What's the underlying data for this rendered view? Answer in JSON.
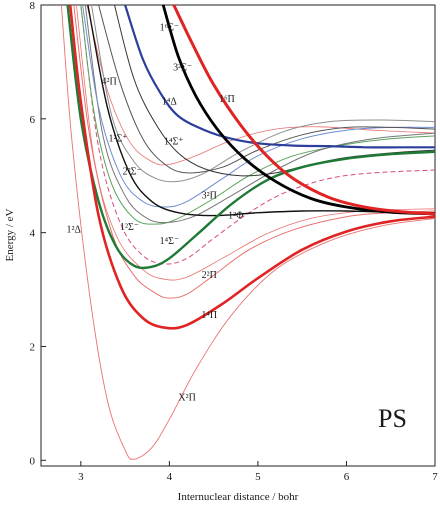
{
  "chart_data": {
    "type": "line",
    "title": "",
    "molecule_label": "PS",
    "xlabel": "Internuclear distance / bohr",
    "ylabel": "Energy / eV",
    "xlim": [
      2.55,
      7.0
    ],
    "ylim": [
      -0.1,
      8.0
    ],
    "xticks": [
      3,
      4,
      5,
      6,
      7
    ],
    "yticks": [
      0,
      2,
      4,
      6,
      8
    ],
    "grid": false,
    "series": [
      {
        "label": "X²Π",
        "color": "#e8726f",
        "width": 0.9,
        "label_at": [
          4.2,
          1.05
        ],
        "x": [
          2.78,
          2.9,
          3.1,
          3.3,
          3.5,
          3.6,
          3.8,
          4.0,
          4.3,
          4.7,
          5.2,
          5.8,
          6.4,
          7.0
        ],
        "y": [
          8.0,
          5.6,
          2.9,
          1.05,
          0.18,
          0.02,
          0.22,
          0.72,
          1.6,
          2.55,
          3.35,
          3.85,
          4.12,
          4.25
        ]
      },
      {
        "label": "1⁴Π",
        "color": "#e02424",
        "width": 2.6,
        "label_at": [
          4.45,
          2.5
        ],
        "x": [
          2.88,
          3.0,
          3.2,
          3.45,
          3.7,
          3.95,
          4.2,
          4.6,
          5.0,
          5.5,
          6.0,
          6.5,
          7.0
        ],
        "y": [
          8.0,
          6.3,
          4.3,
          3.05,
          2.5,
          2.33,
          2.38,
          2.75,
          3.2,
          3.7,
          4.02,
          4.2,
          4.28
        ]
      },
      {
        "label": "2²Π",
        "color": "#e8726f",
        "width": 1.0,
        "label_at": [
          4.45,
          3.2
        ],
        "x": [
          2.92,
          3.1,
          3.35,
          3.6,
          3.85,
          4.0,
          4.2,
          4.5,
          4.9,
          5.4,
          6.0,
          6.5,
          7.0
        ],
        "y": [
          8.0,
          5.7,
          4.0,
          3.25,
          2.93,
          2.85,
          2.92,
          3.25,
          3.7,
          4.05,
          4.28,
          4.35,
          4.38
        ]
      },
      {
        "label": "",
        "color": "#e8726f",
        "width": 0.8,
        "label_at": null,
        "x": [
          2.95,
          3.15,
          3.4,
          3.7,
          3.95,
          4.2,
          4.6,
          5.1,
          5.6,
          6.2,
          7.0
        ],
        "y": [
          8.0,
          5.3,
          3.95,
          3.35,
          3.18,
          3.22,
          3.55,
          3.98,
          4.25,
          4.38,
          4.42
        ]
      },
      {
        "label": "1⁴Σ⁻",
        "color": "#1e7a35",
        "width": 2.4,
        "label_at": [
          4.0,
          3.8
        ],
        "x": [
          2.85,
          3.0,
          3.2,
          3.4,
          3.6,
          3.8,
          4.0,
          4.3,
          4.7,
          5.1,
          5.5,
          6.0,
          6.5,
          7.0
        ],
        "y": [
          8.0,
          6.0,
          4.55,
          3.75,
          3.42,
          3.4,
          3.55,
          3.95,
          4.5,
          4.92,
          5.15,
          5.3,
          5.38,
          5.42
        ]
      },
      {
        "label": "1²Φ",
        "color": "#d94a7a",
        "width": 1.0,
        "dash": "5,3",
        "label_at": [
          4.75,
          4.25
        ],
        "x": [
          3.0,
          3.2,
          3.45,
          3.7,
          3.95,
          4.2,
          4.5,
          4.9,
          5.3,
          5.8,
          6.3,
          7.0
        ],
        "y": [
          8.0,
          5.5,
          4.15,
          3.6,
          3.45,
          3.55,
          3.9,
          4.35,
          4.7,
          4.95,
          5.05,
          5.1
        ]
      },
      {
        "label": "1²Δ",
        "color": "#5aa25a",
        "width": 1.0,
        "label_at": [
          2.92,
          4.0
        ],
        "x": [
          3.0,
          3.15,
          3.35,
          3.6,
          3.85,
          4.1,
          4.5,
          4.9,
          5.4,
          6.0,
          6.5,
          7.0
        ],
        "y": [
          8.0,
          6.1,
          4.85,
          4.25,
          4.15,
          4.25,
          4.6,
          5.0,
          5.35,
          5.55,
          5.65,
          5.7
        ]
      },
      {
        "label": "1²Σ⁻",
        "color": "#777777",
        "width": 1.0,
        "label_at": [
          3.55,
          4.05
        ],
        "x": [
          3.05,
          3.25,
          3.5,
          3.75,
          4.0,
          4.3,
          4.7,
          5.2,
          5.7,
          6.3,
          7.0
        ],
        "y": [
          8.0,
          5.7,
          4.65,
          4.25,
          4.18,
          4.3,
          4.65,
          5.1,
          5.45,
          5.65,
          5.75
        ]
      },
      {
        "label": "1²Σ⁺",
        "color": "#6f8ccf",
        "width": 1.0,
        "label_at": [
          3.42,
          5.6
        ],
        "x": [
          3.02,
          3.2,
          3.45,
          3.7,
          3.95,
          4.2,
          4.6,
          5.0,
          5.5,
          6.0,
          6.5,
          7.0
        ],
        "y": [
          8.0,
          6.2,
          5.0,
          4.55,
          4.45,
          4.55,
          4.95,
          5.35,
          5.65,
          5.8,
          5.85,
          5.85
        ]
      },
      {
        "label": "2²Σ⁻",
        "color": "#8f8f8f",
        "width": 1.0,
        "label_at": [
          3.58,
          5.02
        ],
        "x": [
          3.12,
          3.35,
          3.6,
          3.85,
          4.1,
          4.4,
          4.8,
          5.3,
          5.8,
          6.4,
          7.0
        ],
        "y": [
          8.0,
          6.05,
          5.25,
          4.95,
          4.9,
          5.05,
          5.42,
          5.78,
          5.95,
          5.98,
          5.95
        ]
      },
      {
        "label": "4²Π",
        "color": "#e8726f",
        "width": 0.8,
        "label_at": [
          3.32,
          6.6
        ],
        "x": [
          3.07,
          3.3,
          3.55,
          3.8,
          4.0,
          4.3,
          4.7,
          5.2,
          5.7,
          6.3,
          7.0
        ],
        "y": [
          8.0,
          6.5,
          5.6,
          5.25,
          5.2,
          5.35,
          5.62,
          5.82,
          5.86,
          5.8,
          5.75
        ]
      },
      {
        "label": "3²Σ⁻",
        "color": "#555555",
        "width": 1.0,
        "label_at": [
          4.15,
          6.85
        ],
        "x": [
          3.2,
          3.45,
          3.7,
          3.95,
          4.2,
          4.6,
          5.0,
          5.5,
          6.0,
          6.5,
          7.0
        ],
        "y": [
          8.0,
          6.6,
          5.65,
          5.2,
          5.05,
          5.15,
          5.45,
          5.72,
          5.85,
          5.85,
          5.82
        ]
      },
      {
        "label": "1⁴Δ",
        "color": "#2c3e9c",
        "width": 2.2,
        "label_at": [
          4.0,
          6.25
        ],
        "x": [
          3.5,
          3.7,
          3.9,
          4.1,
          4.4,
          4.7,
          5.0,
          5.4,
          5.8,
          6.2,
          6.6,
          7.0
        ],
        "y": [
          8.0,
          7.05,
          6.45,
          6.05,
          5.8,
          5.65,
          5.57,
          5.53,
          5.52,
          5.5,
          5.5,
          5.5
        ]
      },
      {
        "label": "1⁴Σ⁺",
        "color": "#333333",
        "width": 1.0,
        "label_at": [
          4.05,
          5.55
        ],
        "x": [
          3.38,
          3.6,
          3.85,
          4.1,
          4.4,
          4.8,
          5.2,
          5.6,
          6.0,
          6.5,
          7.0
        ],
        "y": [
          8.0,
          6.7,
          5.9,
          5.4,
          5.12,
          5.0,
          5.05,
          5.2,
          5.32,
          5.4,
          5.45
        ]
      },
      {
        "label": "3²Π",
        "color": "#111111",
        "width": 1.4,
        "label_at": [
          4.45,
          4.6
        ],
        "x": [
          3.08,
          3.3,
          3.55,
          3.8,
          4.1,
          4.5,
          5.0,
          5.5,
          6.0,
          6.5,
          7.0
        ],
        "y": [
          8.0,
          6.2,
          5.05,
          4.55,
          4.35,
          4.3,
          4.35,
          4.38,
          4.38,
          4.36,
          4.35
        ]
      },
      {
        "label": "1⁶Σ⁻",
        "color": "#000000",
        "width": 2.8,
        "label_at": [
          4.0,
          7.55
        ],
        "x": [
          3.93,
          4.1,
          4.3,
          4.55,
          4.85,
          5.2,
          5.6,
          6.0,
          6.5,
          7.0
        ],
        "y": [
          8.0,
          7.1,
          6.4,
          5.8,
          5.3,
          4.9,
          4.6,
          4.45,
          4.36,
          4.33
        ]
      },
      {
        "label": "1⁶Π",
        "color": "#e02424",
        "width": 3.0,
        "label_at": [
          4.65,
          6.3
        ],
        "x": [
          4.05,
          4.25,
          4.5,
          4.8,
          5.1,
          5.4,
          5.8,
          6.2,
          6.6,
          7.0
        ],
        "y": [
          8.0,
          7.35,
          6.6,
          5.9,
          5.35,
          4.95,
          4.62,
          4.45,
          4.37,
          4.33
        ]
      }
    ]
  }
}
